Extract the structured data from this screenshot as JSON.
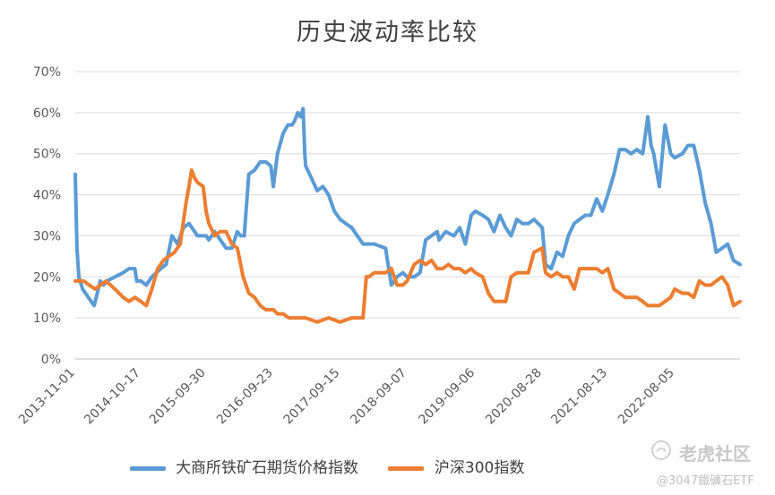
{
  "chart_data": {
    "type": "line",
    "title": "历史波动率比较",
    "ylim": [
      0,
      0.7
    ],
    "yticks": [
      "0%",
      "10%",
      "20%",
      "30%",
      "40%",
      "50%",
      "60%",
      "70%"
    ],
    "ytick_values": [
      0,
      0.1,
      0.2,
      0.3,
      0.4,
      0.5,
      0.6,
      0.7
    ],
    "xlim": [
      "2013-11-01",
      "2023-07-20"
    ],
    "xticks": [
      "2013-11-01",
      "2014-10-17",
      "2015-09-30",
      "2016-09-23",
      "2017-09-15",
      "2018-09-07",
      "2019-09-06",
      "2020-08-28",
      "2021-08-13",
      "2022-08-05"
    ],
    "grid": true,
    "legend_position": "bottom",
    "series": [
      {
        "name": "大商所铁矿石期货价格指数",
        "color": "#5B9BD5",
        "x": [
          "2013-11-01",
          "2013-11-10",
          "2013-11-20",
          "2013-12-10",
          "2014-01-10",
          "2014-02-10",
          "2014-03-15",
          "2014-04-01",
          "2014-04-20",
          "2014-06-01",
          "2014-07-15",
          "2014-08-15",
          "2014-09-15",
          "2014-09-25",
          "2014-10-17",
          "2014-11-15",
          "2014-12-15",
          "2015-02-01",
          "2015-03-01",
          "2015-04-01",
          "2015-05-01",
          "2015-06-01",
          "2015-07-01",
          "2015-08-15",
          "2015-09-30",
          "2015-10-15",
          "2015-11-15",
          "2015-12-15",
          "2016-01-15",
          "2016-02-15",
          "2016-03-15",
          "2016-04-01",
          "2016-04-21",
          "2016-05-15",
          "2016-06-15",
          "2016-07-15",
          "2016-08-15",
          "2016-09-10",
          "2016-09-23",
          "2016-10-15",
          "2016-11-15",
          "2016-12-10",
          "2017-01-01",
          "2017-01-15",
          "2017-02-01",
          "2017-02-15",
          "2017-03-01",
          "2017-03-10",
          "2017-03-15",
          "2017-04-15",
          "2017-05-15",
          "2017-06-15",
          "2017-07-15",
          "2017-08-15",
          "2017-09-15",
          "2017-10-15",
          "2017-11-15",
          "2017-12-15",
          "2018-01-15",
          "2018-03-15",
          "2018-05-15",
          "2018-06-15",
          "2018-07-15",
          "2018-08-15",
          "2018-09-07",
          "2018-10-15",
          "2018-11-15",
          "2018-12-15",
          "2019-01-15",
          "2019-02-15",
          "2019-02-25",
          "2019-04-01",
          "2019-05-15",
          "2019-06-15",
          "2019-07-15",
          "2019-08-15",
          "2019-09-06",
          "2019-10-15",
          "2019-11-15",
          "2019-12-15",
          "2020-01-15",
          "2020-02-15",
          "2020-03-15",
          "2020-04-15",
          "2020-05-15",
          "2020-06-15",
          "2020-07-15",
          "2020-08-28",
          "2020-09-15",
          "2020-10-15",
          "2020-11-15",
          "2020-12-15",
          "2021-01-15",
          "2021-02-15",
          "2021-03-15",
          "2021-04-15",
          "2021-05-15",
          "2021-06-15",
          "2021-07-15",
          "2021-08-13",
          "2021-09-15",
          "2021-10-15",
          "2021-11-15",
          "2021-12-15",
          "2022-01-15",
          "2022-02-15",
          "2022-03-15",
          "2022-04-01",
          "2022-04-15",
          "2022-05-15",
          "2022-06-15",
          "2022-07-15",
          "2022-08-05",
          "2022-09-15",
          "2022-10-15",
          "2022-11-15",
          "2022-12-15",
          "2023-01-15",
          "2023-02-15",
          "2023-03-15",
          "2023-04-15",
          "2023-05-15",
          "2023-06-15",
          "2023-07-20"
        ],
        "values": [
          0.45,
          0.27,
          0.2,
          0.17,
          0.15,
          0.13,
          0.19,
          0.18,
          0.19,
          0.2,
          0.21,
          0.22,
          0.22,
          0.19,
          0.19,
          0.18,
          0.2,
          0.22,
          0.23,
          0.3,
          0.28,
          0.32,
          0.33,
          0.3,
          0.3,
          0.29,
          0.31,
          0.29,
          0.27,
          0.27,
          0.31,
          0.3,
          0.3,
          0.45,
          0.46,
          0.48,
          0.48,
          0.47,
          0.42,
          0.5,
          0.55,
          0.57,
          0.57,
          0.58,
          0.6,
          0.59,
          0.61,
          0.5,
          0.47,
          0.44,
          0.41,
          0.42,
          0.4,
          0.36,
          0.34,
          0.33,
          0.32,
          0.3,
          0.28,
          0.28,
          0.27,
          0.18,
          0.2,
          0.21,
          0.2,
          0.2,
          0.21,
          0.29,
          0.3,
          0.31,
          0.29,
          0.31,
          0.3,
          0.32,
          0.28,
          0.35,
          0.36,
          0.35,
          0.34,
          0.31,
          0.35,
          0.32,
          0.3,
          0.34,
          0.33,
          0.33,
          0.34,
          0.32,
          0.23,
          0.22,
          0.26,
          0.25,
          0.3,
          0.33,
          0.34,
          0.35,
          0.35,
          0.39,
          0.36,
          0.4,
          0.45,
          0.51,
          0.51,
          0.5,
          0.51,
          0.5,
          0.59,
          0.52,
          0.5,
          0.42,
          0.57,
          0.5,
          0.49,
          0.5,
          0.52,
          0.52,
          0.46,
          0.38,
          0.33,
          0.26,
          0.27,
          0.28,
          0.24,
          0.23
        ]
      },
      {
        "name": "沪深300指数",
        "color": "#ED7D31",
        "x": [
          "2013-11-01",
          "2013-12-15",
          "2014-01-15",
          "2014-02-15",
          "2014-03-15",
          "2014-04-15",
          "2014-06-01",
          "2014-07-15",
          "2014-08-15",
          "2014-09-15",
          "2014-10-17",
          "2014-11-15",
          "2014-12-15",
          "2015-01-15",
          "2015-02-15",
          "2015-03-15",
          "2015-04-15",
          "2015-05-15",
          "2015-06-15",
          "2015-07-01",
          "2015-07-15",
          "2015-08-01",
          "2015-08-15",
          "2015-09-15",
          "2015-09-30",
          "2015-10-15",
          "2015-11-15",
          "2015-12-15",
          "2016-01-15",
          "2016-02-15",
          "2016-03-15",
          "2016-04-15",
          "2016-05-15",
          "2016-06-15",
          "2016-07-15",
          "2016-08-15",
          "2016-09-23",
          "2016-10-15",
          "2016-11-15",
          "2016-12-15",
          "2017-01-15",
          "2017-03-15",
          "2017-05-15",
          "2017-07-15",
          "2017-09-15",
          "2017-11-15",
          "2018-01-15",
          "2018-02-01",
          "2018-02-15",
          "2018-03-15",
          "2018-04-15",
          "2018-05-15",
          "2018-06-15",
          "2018-07-15",
          "2018-08-15",
          "2018-09-07",
          "2018-10-15",
          "2018-11-15",
          "2018-12-15",
          "2019-01-15",
          "2019-02-15",
          "2019-03-15",
          "2019-04-15",
          "2019-05-15",
          "2019-06-15",
          "2019-07-15",
          "2019-08-15",
          "2019-09-06",
          "2019-10-15",
          "2019-11-15",
          "2019-12-15",
          "2020-01-15",
          "2020-02-15",
          "2020-03-15",
          "2020-04-15",
          "2020-05-15",
          "2020-06-15",
          "2020-07-15",
          "2020-08-28",
          "2020-09-15",
          "2020-10-15",
          "2020-11-15",
          "2020-12-15",
          "2021-01-15",
          "2021-02-15",
          "2021-03-15",
          "2021-04-15",
          "2021-05-15",
          "2021-06-15",
          "2021-07-15",
          "2021-08-13",
          "2021-09-15",
          "2021-10-15",
          "2021-11-15",
          "2021-12-15",
          "2022-01-15",
          "2022-02-15",
          "2022-03-15",
          "2022-04-15",
          "2022-05-15",
          "2022-06-15",
          "2022-07-15",
          "2022-08-05",
          "2022-09-15",
          "2022-10-15",
          "2022-11-15",
          "2022-12-15",
          "2023-01-15",
          "2023-02-15",
          "2023-03-15",
          "2023-04-15",
          "2023-05-15",
          "2023-06-15",
          "2023-07-20"
        ],
        "values": [
          0.19,
          0.19,
          0.18,
          0.17,
          0.18,
          0.19,
          0.17,
          0.15,
          0.14,
          0.15,
          0.14,
          0.13,
          0.17,
          0.22,
          0.24,
          0.25,
          0.26,
          0.28,
          0.38,
          0.42,
          0.46,
          0.44,
          0.43,
          0.42,
          0.36,
          0.33,
          0.3,
          0.31,
          0.31,
          0.28,
          0.27,
          0.2,
          0.16,
          0.15,
          0.13,
          0.12,
          0.12,
          0.11,
          0.11,
          0.1,
          0.1,
          0.1,
          0.09,
          0.1,
          0.09,
          0.1,
          0.1,
          0.2,
          0.2,
          0.21,
          0.21,
          0.21,
          0.22,
          0.18,
          0.18,
          0.19,
          0.23,
          0.24,
          0.23,
          0.24,
          0.22,
          0.22,
          0.23,
          0.22,
          0.22,
          0.21,
          0.22,
          0.21,
          0.2,
          0.16,
          0.14,
          0.14,
          0.14,
          0.2,
          0.21,
          0.21,
          0.21,
          0.26,
          0.27,
          0.21,
          0.2,
          0.21,
          0.2,
          0.2,
          0.17,
          0.22,
          0.22,
          0.22,
          0.22,
          0.21,
          0.22,
          0.17,
          0.16,
          0.15,
          0.15,
          0.15,
          0.14,
          0.13,
          0.13,
          0.13,
          0.14,
          0.15,
          0.17,
          0.16,
          0.16,
          0.15,
          0.19,
          0.18,
          0.18,
          0.19,
          0.2,
          0.18,
          0.13,
          0.14
        ]
      }
    ]
  },
  "watermark": {
    "main": "老虎社区",
    "sub": "@3047鐵礦石ETF",
    "icon": "tiger-logo-icon"
  }
}
